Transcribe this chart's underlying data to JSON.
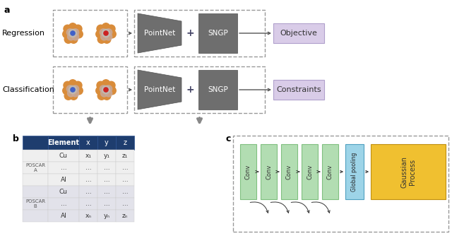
{
  "fig_width": 6.4,
  "fig_height": 3.34,
  "bg_color": "#ffffff",
  "panel_a_label": "a",
  "panel_b_label": "b",
  "panel_c_label": "c",
  "regression_label": "Regression",
  "classification_label": "Classification",
  "pointnet_label": "PointNet",
  "sngp_label": "SNGP",
  "objective_label": "Objective",
  "constraints_label": "Constraints",
  "plus_sign": "+",
  "dashed_box_color": "#aaaaaa",
  "pointnet_color": "#6e6e6e",
  "sngp_color": "#6e6e6e",
  "objective_color": "#d9cce8",
  "constraints_color": "#d9cce8",
  "arrow_color": "#555555",
  "table_header_color": "#1e3d6e",
  "table_header_text": "#ffffff",
  "table_row_a_color": "#efefef",
  "table_row_b_color": "#e2e2ea",
  "conv_color": "#b2ddb2",
  "global_pool_color": "#9dd4e8",
  "gaussian_color": "#f0c030",
  "conv_label": "Conv",
  "global_pool_label": "Global pooling",
  "gaussian_label": "Gaussian\nProcess",
  "table_cols": [
    "",
    "Element",
    "x",
    "y",
    "z"
  ],
  "table_data": [
    [
      "",
      "Cu",
      "x₁",
      "y₁",
      "z₁"
    ],
    [
      "POSCAR\nA",
      "...",
      "...",
      "...",
      "..."
    ],
    [
      "",
      "Al",
      "...",
      "...",
      "..."
    ],
    [
      "",
      "Cu",
      "...",
      "...",
      "..."
    ],
    [
      "POSCAR\nB",
      "...",
      "...",
      "...",
      "..."
    ],
    [
      "",
      "Al",
      "xₙ",
      "yₙ",
      "zₙ"
    ]
  ],
  "orange_atom": "#d98c3a",
  "pink_atom": "#c8a898",
  "blue_atom": "#4060c8",
  "red_atom": "#cc2222",
  "grey_inner": "#c0b8b0"
}
